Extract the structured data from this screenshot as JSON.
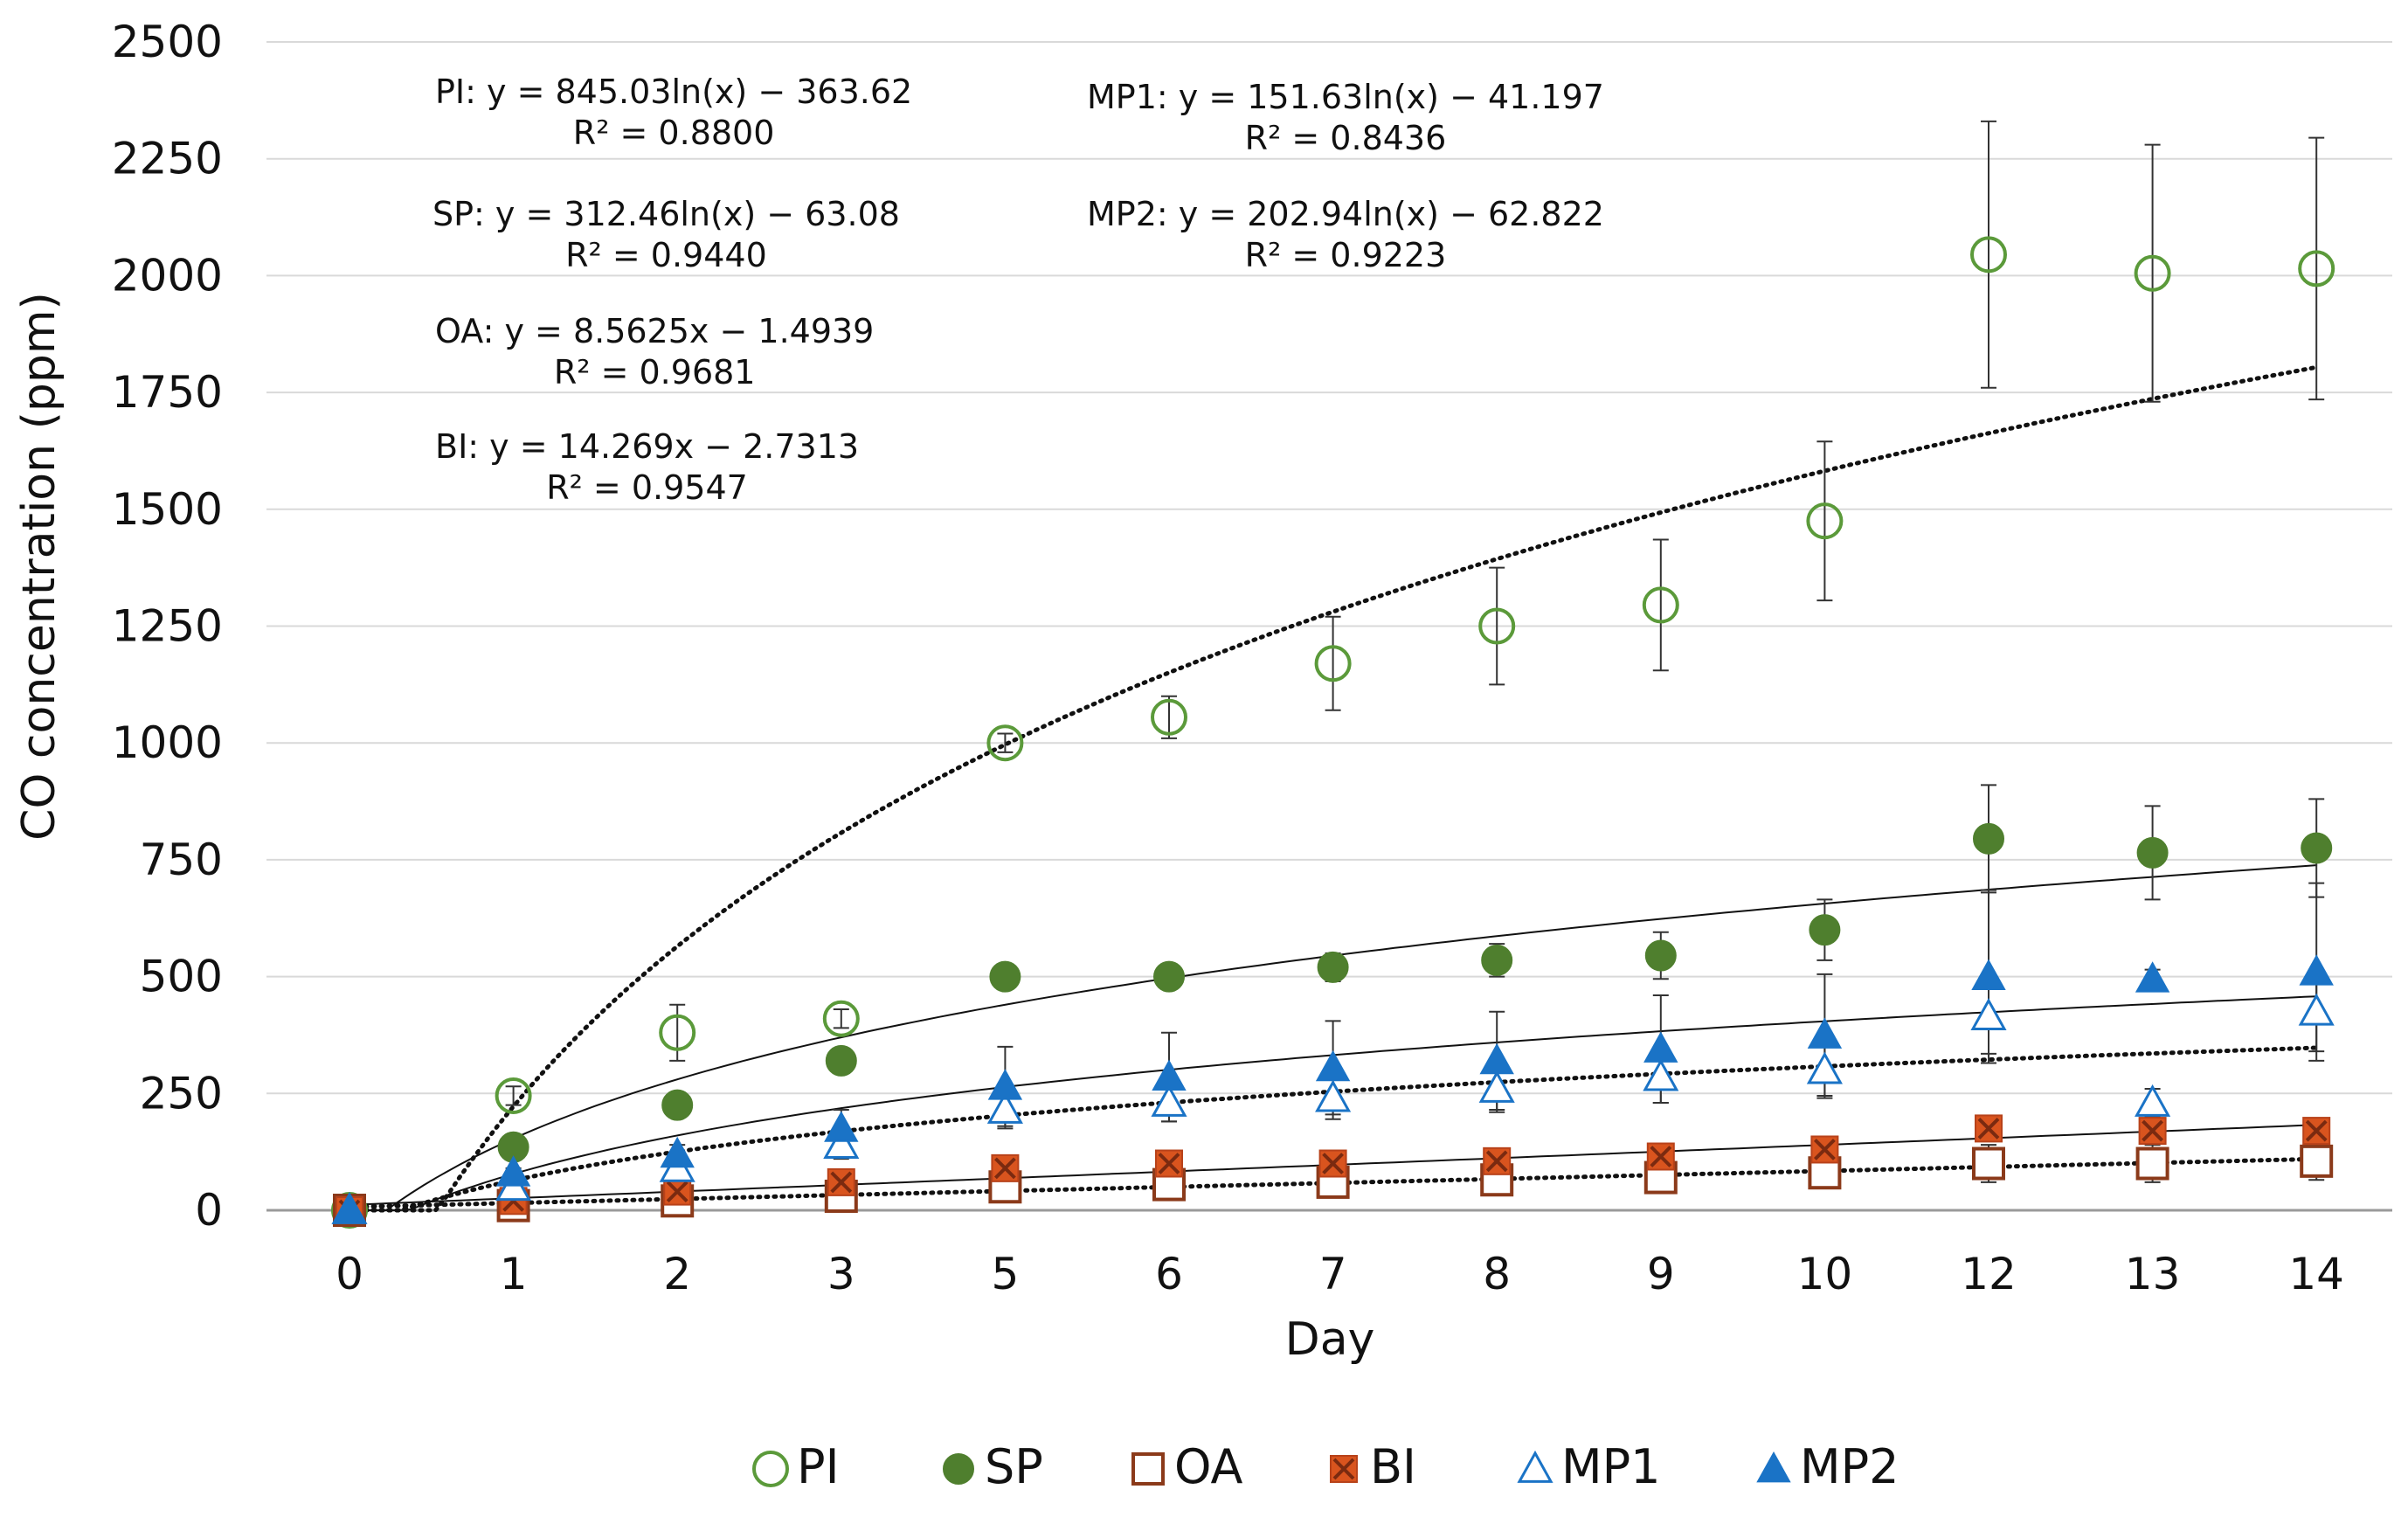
{
  "chart_data": {
    "type": "scatter",
    "xlabel": "Day",
    "ylabel": "CO concentration (ppm)",
    "categories": [
      "0",
      "1",
      "2",
      "3",
      "5",
      "6",
      "7",
      "8",
      "9",
      "10",
      "12",
      "13",
      "14"
    ],
    "x": [
      0,
      1,
      2,
      3,
      5,
      6,
      7,
      8,
      9,
      10,
      12,
      13,
      14
    ],
    "ylim": [
      0,
      2500
    ],
    "yticks": [
      "0",
      "250",
      "500",
      "750",
      "1000",
      "1250",
      "1500",
      "1750",
      "2000",
      "2250",
      "2500"
    ],
    "ytick_values": [
      0,
      250,
      500,
      750,
      1000,
      1250,
      1500,
      1750,
      2000,
      2250,
      2500
    ],
    "grid": "horizontal",
    "legend_position": "bottom",
    "series": [
      {
        "name": "PI",
        "marker": "circle-open",
        "color": "#5b9a3a",
        "values": [
          0,
          245,
          380,
          410,
          1000,
          1055,
          1170,
          1250,
          1295,
          1475,
          2045,
          2005,
          2015
        ],
        "errors": [
          0,
          20,
          60,
          20,
          20,
          45,
          100,
          125,
          140,
          170,
          285,
          275,
          280
        ]
      },
      {
        "name": "SP",
        "marker": "circle-filled",
        "color": "#4f7f2e",
        "values": [
          0,
          135,
          225,
          320,
          500,
          500,
          520,
          535,
          545,
          600,
          795,
          765,
          775
        ],
        "errors": [
          0,
          10,
          10,
          10,
          10,
          10,
          30,
          35,
          50,
          65,
          115,
          100,
          105
        ]
      },
      {
        "name": "OA",
        "marker": "square-open",
        "color": "#8b3a1a",
        "values": [
          0,
          10,
          20,
          30,
          50,
          55,
          60,
          65,
          70,
          80,
          100,
          100,
          105
        ],
        "errors": [
          0,
          5,
          5,
          10,
          10,
          10,
          15,
          20,
          20,
          20,
          40,
          40,
          40
        ]
      },
      {
        "name": "BI",
        "marker": "square-x",
        "color": "#d9541e",
        "values": [
          0,
          20,
          40,
          60,
          90,
          100,
          100,
          105,
          115,
          130,
          175,
          170,
          170
        ],
        "errors": [
          0,
          5,
          5,
          10,
          10,
          10,
          10,
          10,
          15,
          15,
          20,
          20,
          20
        ]
      },
      {
        "name": "MP1",
        "marker": "triangle-open",
        "color": "#1a73c6",
        "values": [
          0,
          50,
          90,
          140,
          215,
          230,
          240,
          260,
          285,
          300,
          415,
          230,
          425
        ],
        "errors": [
          0,
          10,
          20,
          30,
          40,
          40,
          45,
          50,
          55,
          60,
          80,
          30,
          85
        ]
      },
      {
        "name": "MP2",
        "marker": "triangle-filled",
        "color": "#1a73c6",
        "values": [
          0,
          80,
          120,
          175,
          265,
          285,
          305,
          320,
          345,
          375,
          500,
          495,
          510
        ],
        "errors": [
          0,
          10,
          20,
          40,
          85,
          95,
          100,
          105,
          115,
          130,
          185,
          20,
          190
        ]
      }
    ],
    "trendlines": [
      {
        "series": "PI",
        "type": "log",
        "a": 845.03,
        "b": -363.62,
        "style": "dotted"
      },
      {
        "series": "SP",
        "type": "log",
        "a": 312.46,
        "b": -63.08,
        "style": "solid"
      },
      {
        "series": "OA",
        "type": "linear",
        "a": 8.5625,
        "b": -1.4939,
        "style": "dotted"
      },
      {
        "series": "BI",
        "type": "linear",
        "a": 14.269,
        "b": -2.7313,
        "style": "solid"
      },
      {
        "series": "MP1",
        "type": "log",
        "a": 151.63,
        "b": -41.197,
        "style": "dotted"
      },
      {
        "series": "MP2",
        "type": "log",
        "a": 202.94,
        "b": -62.822,
        "style": "solid"
      }
    ],
    "annotations": [
      {
        "eq": "PI: y = 845.03ln(x) − 363.62",
        "r2": "R² = 0.8800"
      },
      {
        "eq": "SP: y = 312.46ln(x) − 63.08",
        "r2": "R² = 0.9440"
      },
      {
        "eq": "OA: y = 8.5625x − 1.4939",
        "r2": "R² = 0.9681"
      },
      {
        "eq": "BI: y = 14.269x − 2.7313",
        "r2": "R² = 0.9547"
      },
      {
        "eq": "MP1: y = 151.63ln(x) − 41.197",
        "r2": "R² = 0.8436"
      },
      {
        "eq": "MP2: y = 202.94ln(x) − 62.822",
        "r2": "R² = 0.9223"
      }
    ]
  }
}
